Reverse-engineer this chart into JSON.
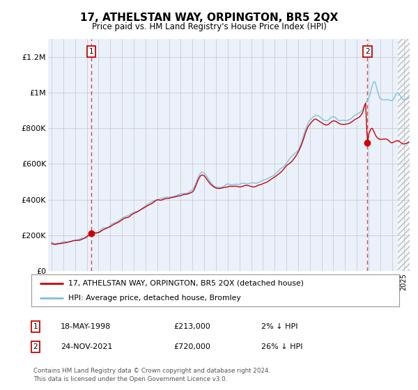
{
  "title": "17, ATHELSTAN WAY, ORPINGTON, BR5 2QX",
  "subtitle": "Price paid vs. HM Land Registry's House Price Index (HPI)",
  "background_color": "#ffffff",
  "plot_bg_color": "#eaf1fb",
  "hpi_color": "#7fbfdf",
  "price_color": "#cc0000",
  "sale1_date_x": 1998.38,
  "sale1_price": 213000,
  "sale2_date_x": 2021.9,
  "sale2_price": 720000,
  "ylim": [
    0,
    1300000
  ],
  "xlim_start": 1994.7,
  "xlim_end": 2025.5,
  "legend_label1": "17, ATHELSTAN WAY, ORPINGTON, BR5 2QX (detached house)",
  "legend_label2": "HPI: Average price, detached house, Bromley",
  "annotation1_label": "1",
  "annotation2_label": "2",
  "table_row1": [
    "1",
    "18-MAY-1998",
    "£213,000",
    "2% ↓ HPI"
  ],
  "table_row2": [
    "2",
    "24-NOV-2021",
    "£720,000",
    "26% ↓ HPI"
  ],
  "footer": "Contains HM Land Registry data © Crown copyright and database right 2024.\nThis data is licensed under the Open Government Licence v3.0.",
  "hatch_region_start": 2024.5,
  "yticks": [
    0,
    200000,
    400000,
    600000,
    800000,
    1000000,
    1200000
  ],
  "ytick_labels": [
    "£0",
    "£200K",
    "£400K",
    "£600K",
    "£800K",
    "£1M",
    "£1.2M"
  ],
  "grid_color": "#cccccc",
  "annotation_box_color": "#cc0000",
  "sale2_dashed_color": "#cc0000"
}
